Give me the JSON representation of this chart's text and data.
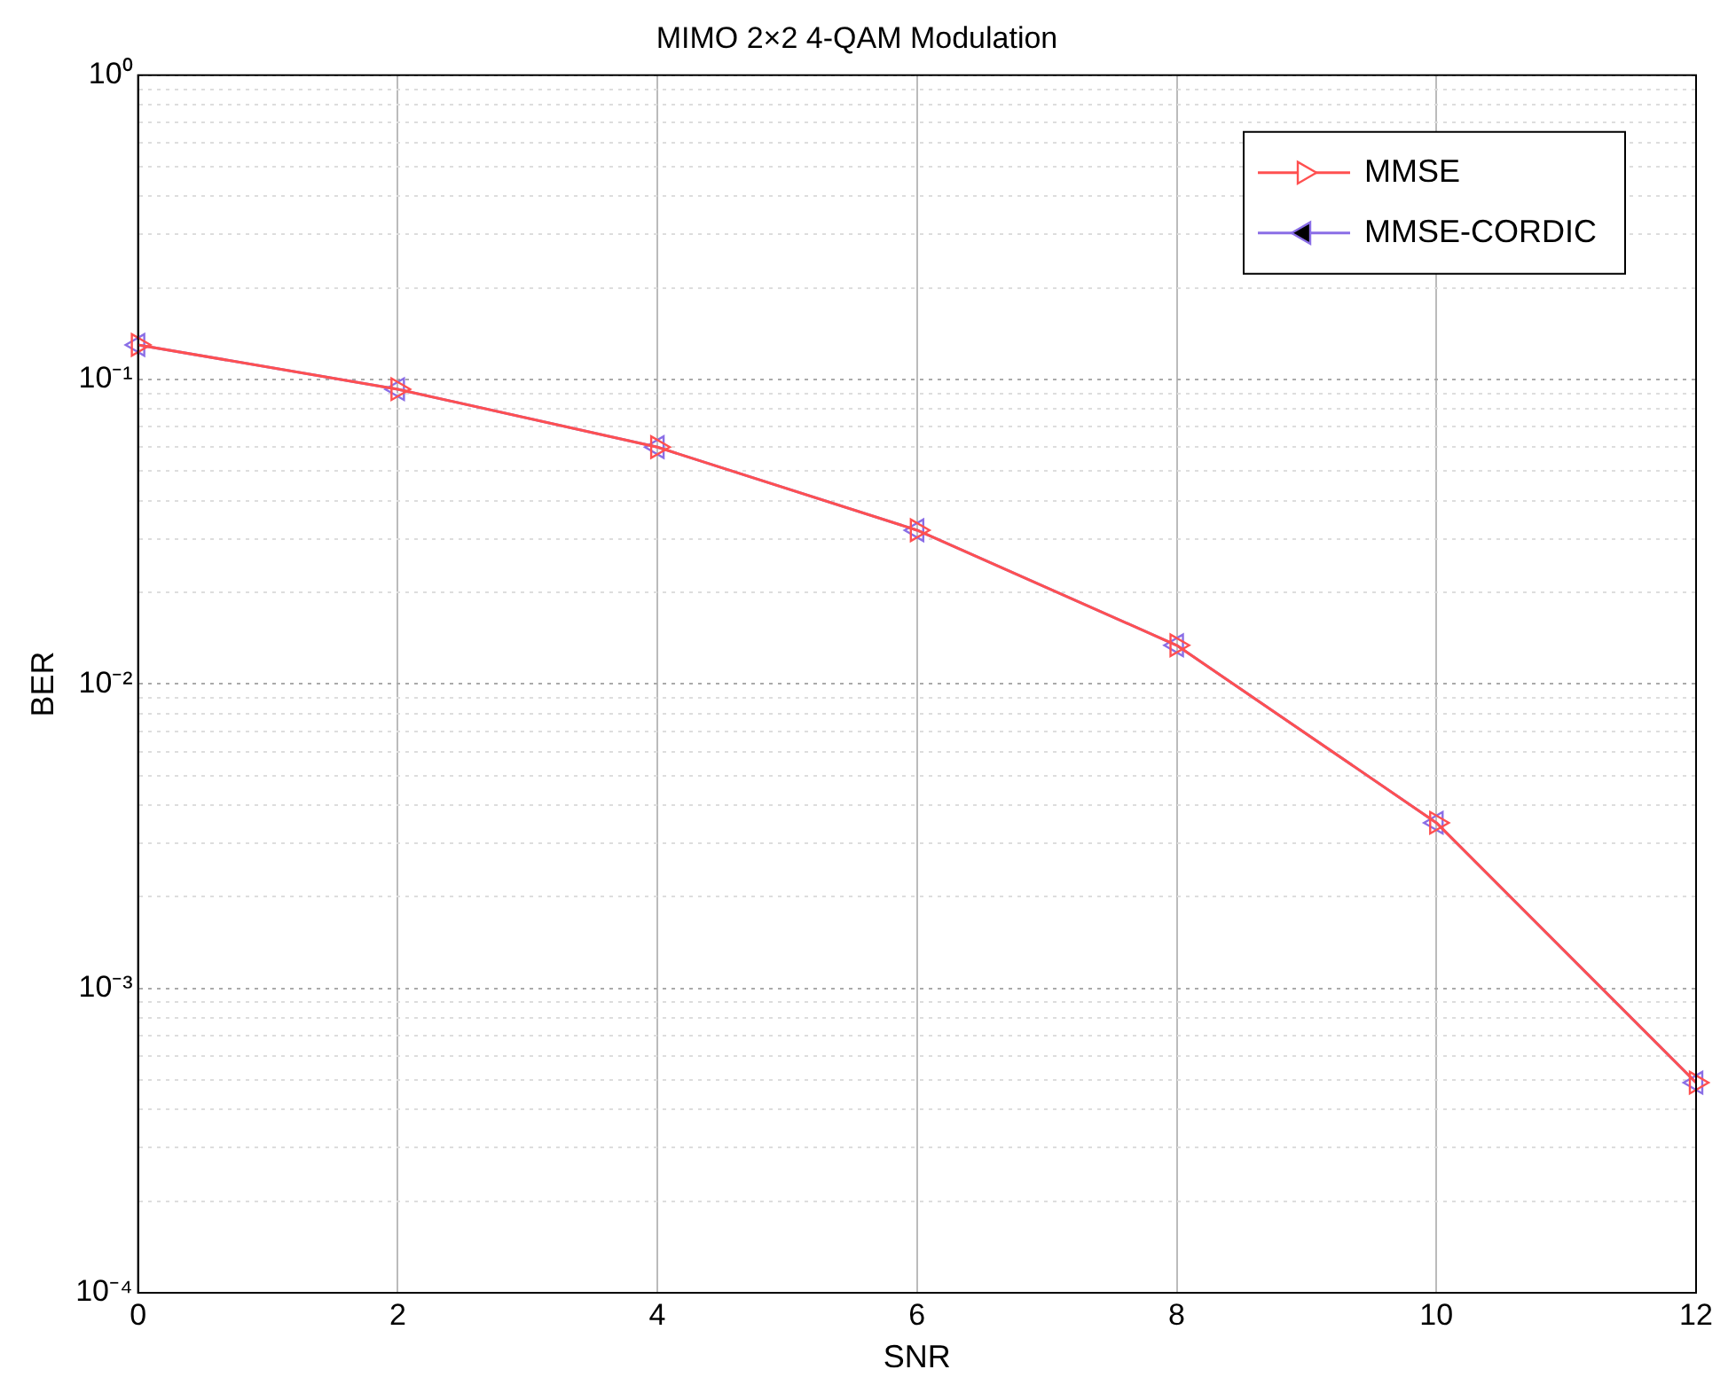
{
  "chart_data": {
    "type": "line",
    "title": "MIMO 2×2 4-QAM Modulation",
    "xlabel": "SNR",
    "ylabel": "BER",
    "x": [
      0,
      2,
      4,
      6,
      8,
      10,
      12
    ],
    "series": [
      {
        "name": "MMSE",
        "color": "#ff5050",
        "marker": "triangle-right",
        "values": [
          0.13,
          0.093,
          0.06,
          0.032,
          0.0134,
          0.0035,
          0.00049
        ]
      },
      {
        "name": "MMSE-CORDIC",
        "color": "#8a6ee6",
        "marker": "triangle-left",
        "values": [
          0.13,
          0.093,
          0.06,
          0.032,
          0.0134,
          0.0035,
          0.00049
        ]
      }
    ],
    "log": "y",
    "xlim": [
      0,
      12
    ],
    "xticks": [
      0,
      2,
      4,
      6,
      8,
      10,
      12
    ],
    "ylim": [
      0.0001,
      1
    ],
    "yticks": [
      {
        "value": 0.0001,
        "label": "10⁻⁴"
      },
      {
        "value": 0.0002,
        "label": null
      },
      {
        "value": 0.0003,
        "label": null
      },
      {
        "value": 0.0004,
        "label": null
      },
      {
        "value": 0.0005,
        "label": null
      },
      {
        "value": 0.0006,
        "label": null
      },
      {
        "value": 0.0007,
        "label": null
      },
      {
        "value": 0.0008,
        "label": null
      },
      {
        "value": 0.0009,
        "label": null
      },
      {
        "value": 0.001,
        "label": "10⁻³"
      },
      {
        "value": 0.002,
        "label": null
      },
      {
        "value": 0.003,
        "label": null
      },
      {
        "value": 0.004,
        "label": null
      },
      {
        "value": 0.005,
        "label": null
      },
      {
        "value": 0.006,
        "label": null
      },
      {
        "value": 0.007,
        "label": null
      },
      {
        "value": 0.008,
        "label": null
      },
      {
        "value": 0.009,
        "label": null
      },
      {
        "value": 0.01,
        "label": "10⁻²"
      },
      {
        "value": 0.02,
        "label": null
      },
      {
        "value": 0.03,
        "label": null
      },
      {
        "value": 0.04,
        "label": null
      },
      {
        "value": 0.05,
        "label": null
      },
      {
        "value": 0.06,
        "label": null
      },
      {
        "value": 0.07,
        "label": null
      },
      {
        "value": 0.08,
        "label": null
      },
      {
        "value": 0.09,
        "label": null
      },
      {
        "value": 0.1,
        "label": "10⁻¹"
      },
      {
        "value": 0.2,
        "label": null
      },
      {
        "value": 0.3,
        "label": null
      },
      {
        "value": 0.4,
        "label": null
      },
      {
        "value": 0.5,
        "label": null
      },
      {
        "value": 0.6,
        "label": null
      },
      {
        "value": 0.7,
        "label": null
      },
      {
        "value": 0.8,
        "label": null
      },
      {
        "value": 0.9,
        "label": null
      },
      {
        "value": 1,
        "label": "10⁰"
      }
    ],
    "grid": true,
    "legend": "top right",
    "line_style": "solid"
  }
}
